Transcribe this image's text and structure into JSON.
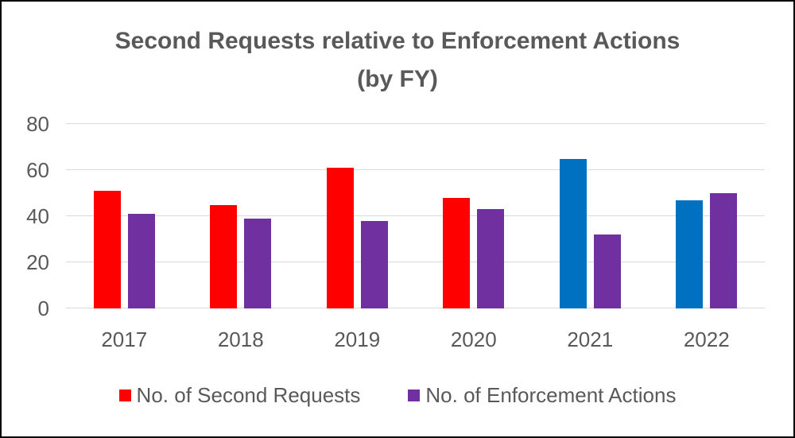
{
  "title": {
    "line1": "Second Requests relative to Enforcement Actions",
    "line2": "(by FY)"
  },
  "chart_data": {
    "type": "bar",
    "title": "Second Requests relative to Enforcement Actions",
    "subtitle": "(by FY)",
    "categories": [
      "2017",
      "2018",
      "2019",
      "2020",
      "2021",
      "2022"
    ],
    "series": [
      {
        "name": "No. of Second Requests",
        "values": [
          51,
          45,
          61,
          48,
          65,
          47
        ],
        "legend_color": "#FF0000",
        "bar_colors": [
          "#FF0000",
          "#FF0000",
          "#FF0000",
          "#FF0000",
          "#0070C0",
          "#0070C0"
        ]
      },
      {
        "name": "No. of Enforcement Actions",
        "values": [
          41,
          39,
          38,
          43,
          32,
          50
        ],
        "legend_color": "#7030A0",
        "bar_colors": [
          "#7030A0",
          "#7030A0",
          "#7030A0",
          "#7030A0",
          "#7030A0",
          "#7030A0"
        ]
      }
    ],
    "xlabel": "",
    "ylabel": "",
    "ylim": [
      0,
      80
    ],
    "yticks": [
      0,
      20,
      40,
      60,
      80
    ],
    "grid": "horizontal",
    "legend_position": "bottom"
  },
  "colors": {
    "red": "#FF0000",
    "blue": "#0070C0",
    "purple": "#7030A0",
    "gridline": "#D9D9D9",
    "text": "#595959",
    "frame_border": "#000000",
    "background": "#FFFFFF"
  }
}
